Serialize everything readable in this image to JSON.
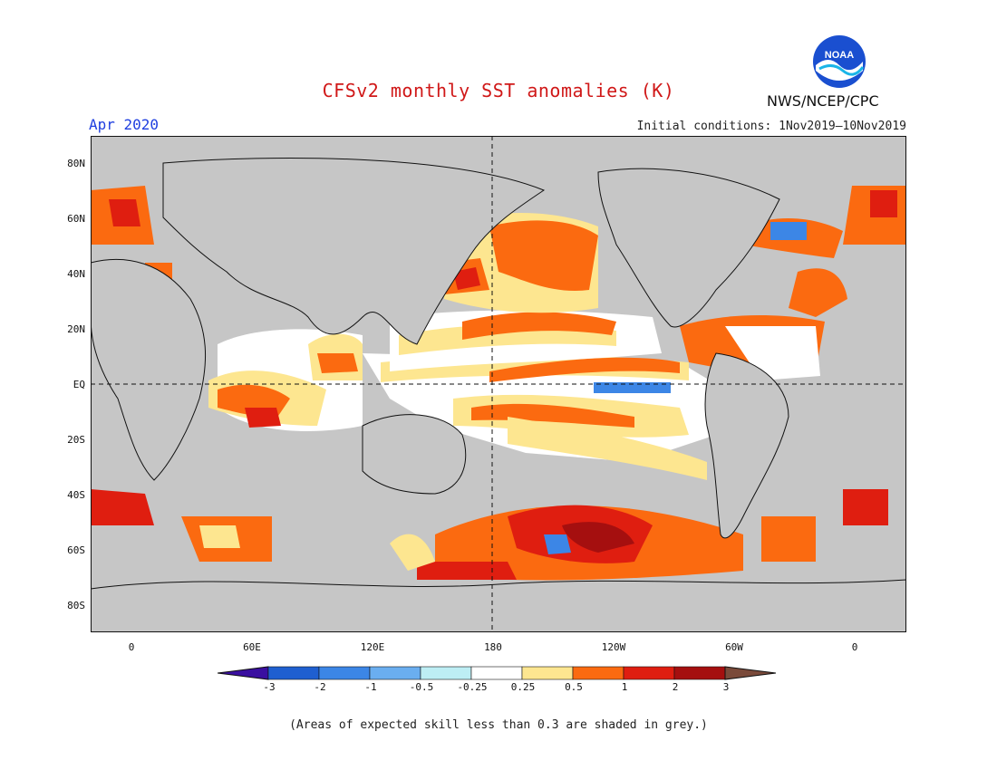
{
  "header": {
    "title": "CFSv2 monthly SST anomalies (K)",
    "month": "Apr 2020",
    "initial_conditions": "Initial conditions: 1Nov2019–10Nov2019",
    "agency": "NWS/NCEP/CPC",
    "logo_text": "NOAA"
  },
  "axes": {
    "lat_labels": [
      "80N",
      "60N",
      "40N",
      "20N",
      "EQ",
      "20S",
      "40S",
      "60S",
      "80S"
    ],
    "lon_labels": [
      "0",
      "60E",
      "120E",
      "180",
      "120W",
      "60W",
      "0"
    ]
  },
  "colorbar": {
    "labels": [
      "-3",
      "-2",
      "-1",
      "-0.5",
      "-0.25",
      "0.25",
      "0.5",
      "1",
      "2",
      "3"
    ],
    "colors": [
      "#3a0fa0",
      "#1f5fd0",
      "#3c86e6",
      "#6aaef0",
      "#bdeef4",
      "#ffffff",
      "#fde690",
      "#fb6a10",
      "#df1e10",
      "#a50f0f",
      "#7a4a3a"
    ]
  },
  "footer": {
    "note": "(Areas of expected skill less than 0.3 are shaded in grey.)"
  },
  "colors": {
    "grey_mask": "#c6c6c6",
    "title_red": "#d01818",
    "month_blue": "#2040e0"
  }
}
